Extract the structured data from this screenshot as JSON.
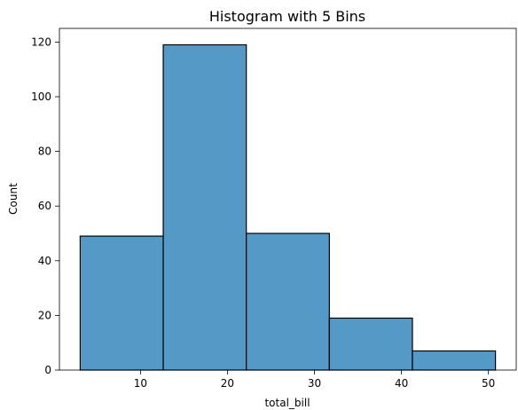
{
  "chart_data": {
    "type": "bar",
    "title": "Histogram with 5 Bins",
    "xlabel": "total_bill",
    "ylabel": "Count",
    "bins": [
      {
        "start": 3.07,
        "end": 12.618,
        "count": 49
      },
      {
        "start": 12.618,
        "end": 22.166,
        "count": 119
      },
      {
        "start": 22.166,
        "end": 31.714,
        "count": 50
      },
      {
        "start": 31.714,
        "end": 41.262,
        "count": 19
      },
      {
        "start": 41.262,
        "end": 50.81,
        "count": 7
      }
    ],
    "xlim": [
      0.683,
      53.197
    ],
    "ylim": [
      0,
      125
    ],
    "xticks": [
      10,
      20,
      30,
      40,
      50
    ],
    "yticks": [
      0,
      20,
      40,
      60,
      80,
      100,
      120
    ],
    "bar_color": "#5599c6",
    "edge_color": "#000000",
    "grid": false,
    "legend": "none"
  }
}
